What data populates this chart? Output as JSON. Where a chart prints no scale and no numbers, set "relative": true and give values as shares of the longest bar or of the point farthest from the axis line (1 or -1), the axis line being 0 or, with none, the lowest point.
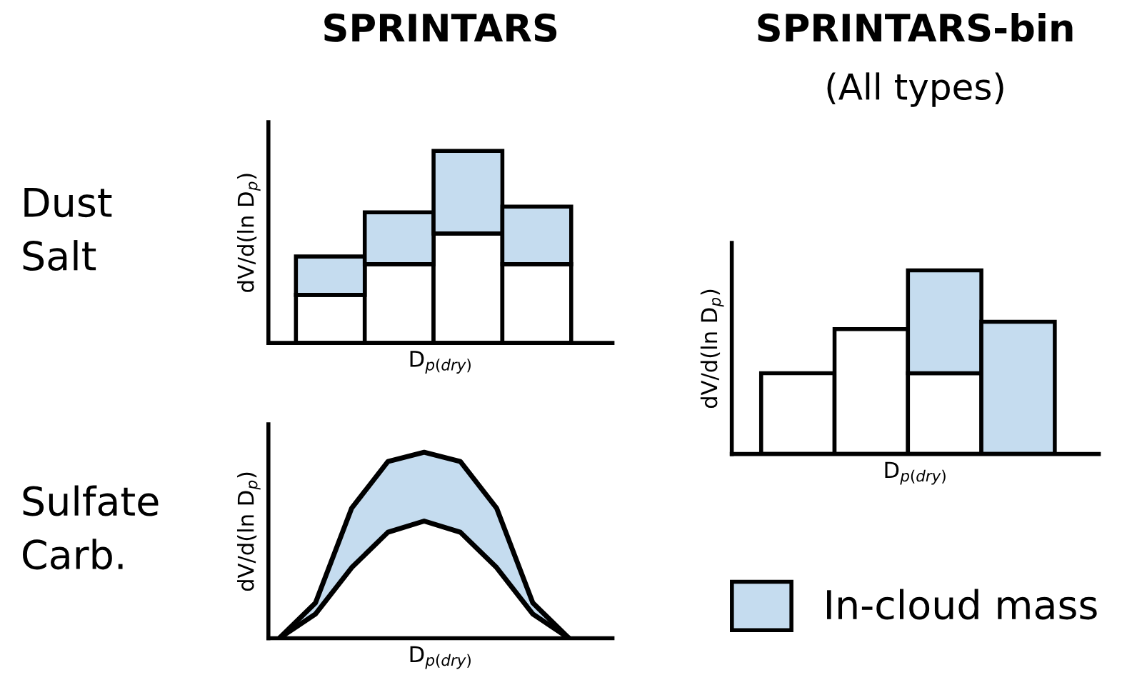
{
  "chart_data": [
    {
      "type": "bar",
      "title": "SPRINTARS",
      "relative": true,
      "stacked": true,
      "xlabel": "D$_{p(dry)}$",
      "ylabel": "dV/d(ln D$_{p}$)",
      "annotations": [
        "Dust\nSalt"
      ],
      "categories": [
        null,
        null,
        null,
        null
      ],
      "series": [
        {
          "color": "#ffffff",
          "values": [
            0.25,
            0.41,
            0.57,
            0.41
          ]
        },
        {
          "color": "#c5dcef",
          "values": [
            0.2,
            0.27,
            0.43,
            0.3
          ]
        }
      ]
    },
    {
      "type": "area",
      "relative": true,
      "stacked": true,
      "xlabel": "D$_{p(dry)}$",
      "ylabel": "dV/d(ln D$_{p}$)",
      "annotations": [
        "Sulfate\nCarb."
      ],
      "categories": [
        null,
        null,
        null,
        null,
        null,
        null,
        null,
        null,
        null
      ],
      "series": [
        {
          "color": "#ffffff",
          "values": [
            0,
            0.13,
            0.38,
            0.57,
            0.63,
            0.57,
            0.38,
            0.13,
            0
          ]
        },
        {
          "color": "#c5dcef",
          "values": [
            0,
            0.06,
            0.32,
            0.38,
            0.37,
            0.38,
            0.32,
            0.06,
            0
          ]
        }
      ]
    },
    {
      "type": "bar",
      "title": "SPRINTARS-bin",
      "subtitle": "(All types)",
      "relative": true,
      "stacked": true,
      "legend": "bottom",
      "xlabel": "D$_{p(dry)}$",
      "ylabel": "dV/d(ln D$_{p}$)",
      "categories": [
        null,
        null,
        null,
        null
      ],
      "series": [
        {
          "color": "#ffffff",
          "values": [
            0.44,
            0.68,
            0.44,
            null
          ]
        },
        {
          "name": "In-cloud mass",
          "color": "#c5dcef",
          "values": [
            null,
            null,
            0.56,
            0.72
          ]
        }
      ]
    }
  ]
}
